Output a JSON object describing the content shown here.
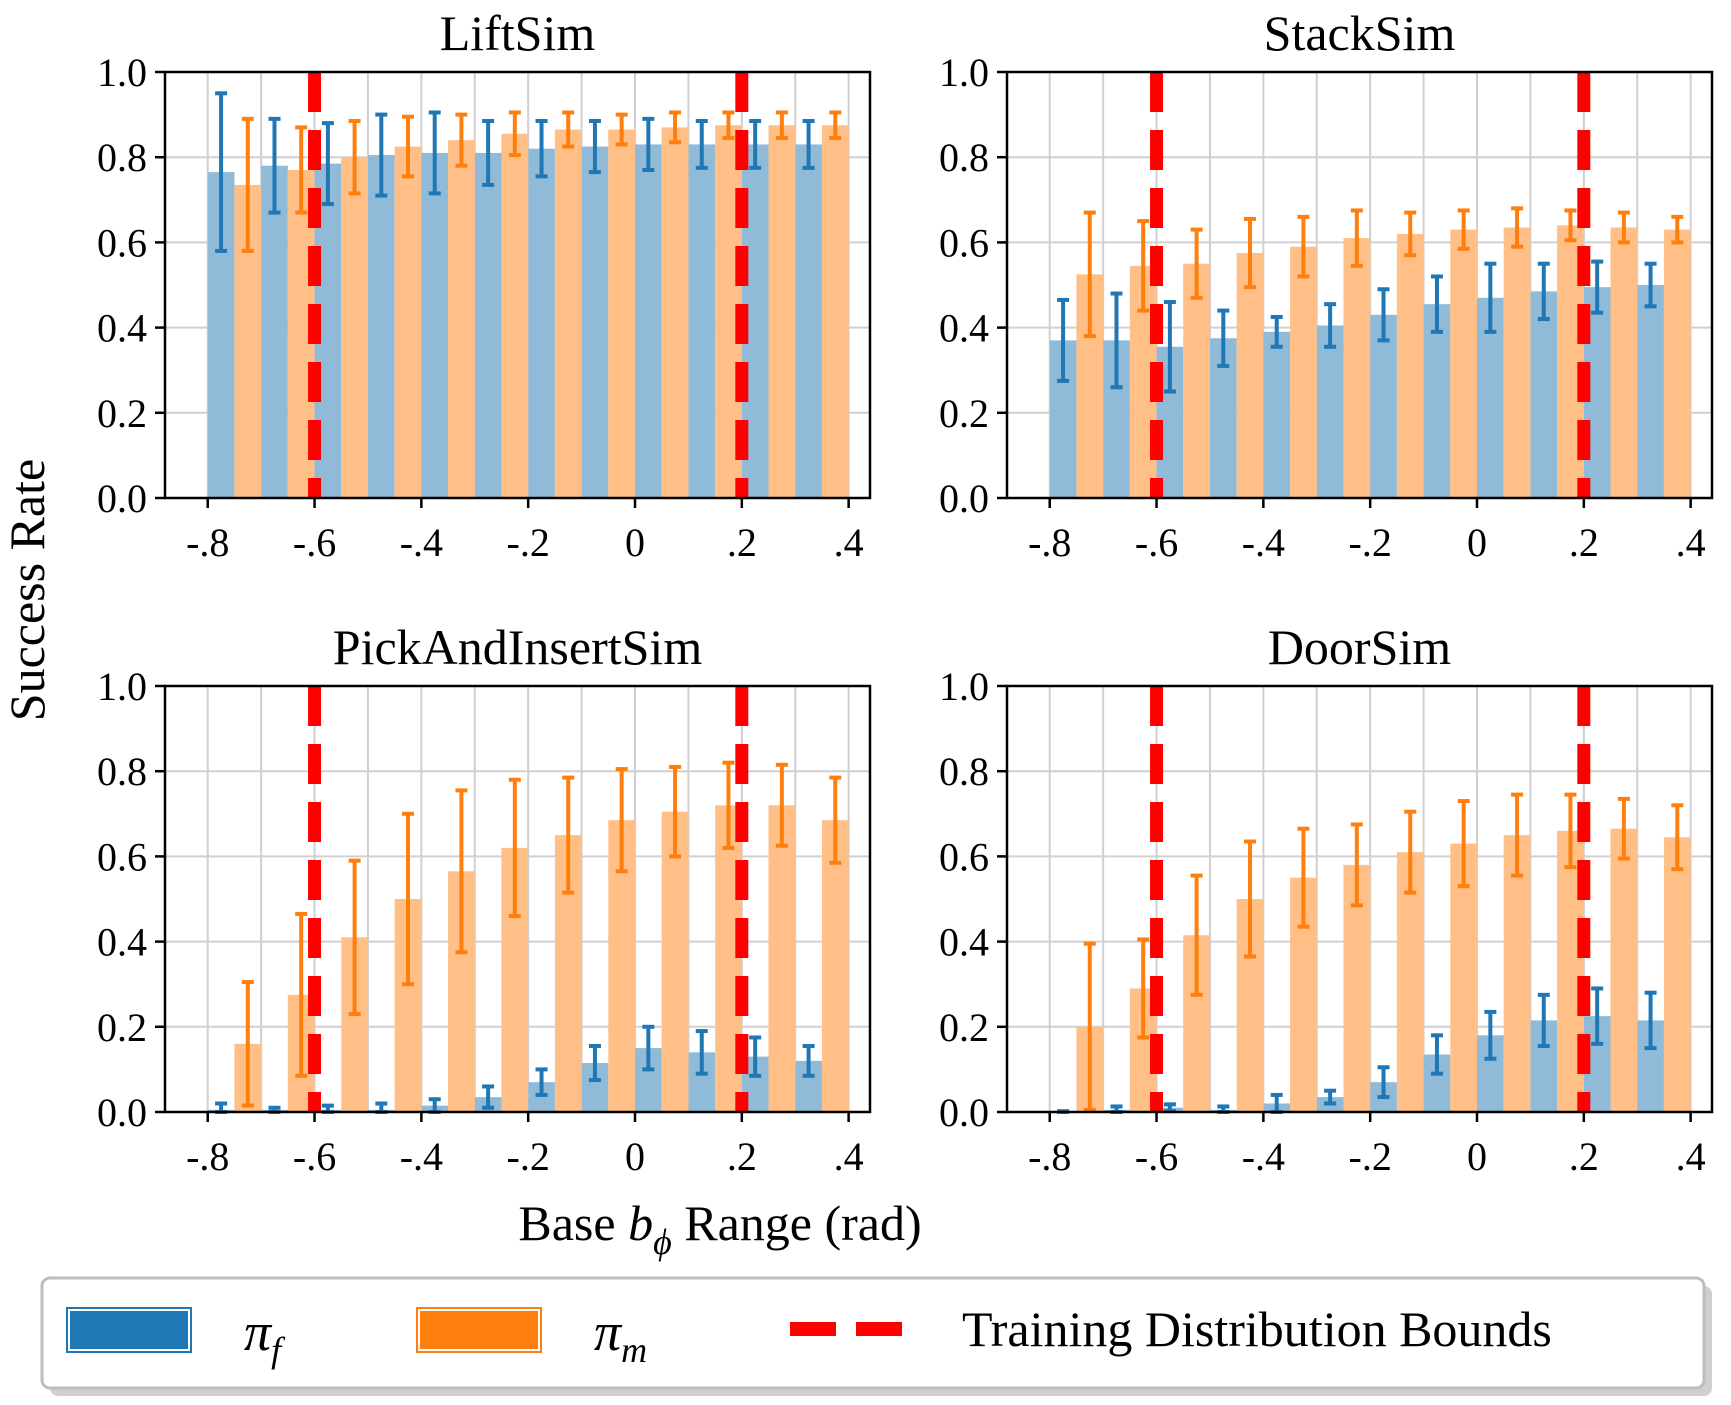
{
  "figure": {
    "ylabel": "Success Rate",
    "xlabel_pre": "Base ",
    "xlabel_var": "b",
    "xlabel_sub": "ϕ",
    "xlabel_post": " Range (rad)"
  },
  "legend": {
    "items": [
      {
        "sym": "π",
        "sub": "f",
        "color": "#1f77b4"
      },
      {
        "sym": "π",
        "sub": "m",
        "color": "#ff7f0e"
      },
      {
        "label": "Training Distribution Bounds",
        "color": "#ff0000"
      }
    ]
  },
  "colors": {
    "pi_f": "#1f77b4",
    "pi_m": "#ff7f0e",
    "bounds": "#ff0000",
    "grid": "#d0d0d0"
  },
  "chart_data": [
    {
      "type": "bar",
      "title": "LiftSim",
      "x": [
        -0.8,
        -0.7,
        -0.6,
        -0.5,
        -0.4,
        -0.3,
        -0.2,
        -0.1,
        0.0,
        0.1,
        0.2,
        0.3
      ],
      "xticks": [
        -0.8,
        -0.6,
        -0.4,
        -0.2,
        0.0,
        0.2,
        0.4
      ],
      "xticklabels": [
        "-.8",
        "-.6",
        "-.4",
        "-.2",
        "0",
        ".2",
        ".4"
      ],
      "yticks": [
        0.0,
        0.2,
        0.4,
        0.6,
        0.8,
        1.0
      ],
      "yticklabels": [
        "0.0",
        "0.2",
        "0.4",
        "0.6",
        "0.8",
        "1.0"
      ],
      "ylim": [
        0,
        1
      ],
      "bounds": [
        -0.6,
        0.2
      ],
      "series": [
        {
          "values": [
            0.765,
            0.78,
            0.785,
            0.805,
            0.81,
            0.81,
            0.82,
            0.825,
            0.83,
            0.83,
            0.83,
            0.83
          ],
          "err": [
            0.185,
            0.11,
            0.095,
            0.095,
            0.095,
            0.075,
            0.065,
            0.06,
            0.06,
            0.055,
            0.055,
            0.055
          ]
        },
        {
          "values": [
            0.735,
            0.77,
            0.8,
            0.825,
            0.84,
            0.855,
            0.865,
            0.865,
            0.87,
            0.875,
            0.875,
            0.875
          ],
          "err": [
            0.155,
            0.1,
            0.085,
            0.07,
            0.06,
            0.05,
            0.04,
            0.035,
            0.035,
            0.03,
            0.03,
            0.03
          ]
        }
      ]
    },
    {
      "type": "bar",
      "title": "StackSim",
      "x": [
        -0.8,
        -0.7,
        -0.6,
        -0.5,
        -0.4,
        -0.3,
        -0.2,
        -0.1,
        0.0,
        0.1,
        0.2,
        0.3
      ],
      "xticks": [
        -0.8,
        -0.6,
        -0.4,
        -0.2,
        0.0,
        0.2,
        0.4
      ],
      "xticklabels": [
        "-.8",
        "-.6",
        "-.4",
        "-.2",
        "0",
        ".2",
        ".4"
      ],
      "yticks": [
        0.0,
        0.2,
        0.4,
        0.6,
        0.8,
        1.0
      ],
      "yticklabels": [
        "0.0",
        "0.2",
        "0.4",
        "0.6",
        "0.8",
        "1.0"
      ],
      "ylim": [
        0,
        1
      ],
      "bounds": [
        -0.6,
        0.2
      ],
      "series": [
        {
          "values": [
            0.37,
            0.37,
            0.355,
            0.375,
            0.39,
            0.405,
            0.43,
            0.455,
            0.47,
            0.485,
            0.495,
            0.5
          ],
          "err": [
            0.095,
            0.11,
            0.105,
            0.065,
            0.035,
            0.05,
            0.06,
            0.065,
            0.08,
            0.065,
            0.06,
            0.05
          ]
        },
        {
          "values": [
            0.525,
            0.545,
            0.55,
            0.575,
            0.59,
            0.61,
            0.62,
            0.63,
            0.635,
            0.64,
            0.635,
            0.63
          ],
          "err": [
            0.145,
            0.105,
            0.08,
            0.08,
            0.07,
            0.065,
            0.05,
            0.045,
            0.045,
            0.035,
            0.035,
            0.03
          ]
        }
      ]
    },
    {
      "type": "bar",
      "title": "PickAndInsertSim",
      "x": [
        -0.8,
        -0.7,
        -0.6,
        -0.5,
        -0.4,
        -0.3,
        -0.2,
        -0.1,
        0.0,
        0.1,
        0.2,
        0.3
      ],
      "xticks": [
        -0.8,
        -0.6,
        -0.4,
        -0.2,
        0.0,
        0.2,
        0.4
      ],
      "xticklabels": [
        "-.8",
        "-.6",
        "-.4",
        "-.2",
        "0",
        ".2",
        ".4"
      ],
      "yticks": [
        0.0,
        0.2,
        0.4,
        0.6,
        0.8,
        1.0
      ],
      "yticklabels": [
        "0.0",
        "0.2",
        "0.4",
        "0.6",
        "0.8",
        "1.0"
      ],
      "ylim": [
        0,
        1
      ],
      "bounds": [
        -0.6,
        0.2
      ],
      "series": [
        {
          "values": [
            0.005,
            0.005,
            0.005,
            0.005,
            0.015,
            0.035,
            0.07,
            0.115,
            0.15,
            0.14,
            0.13,
            0.12
          ],
          "err": [
            0.015,
            0.005,
            0.01,
            0.015,
            0.015,
            0.025,
            0.03,
            0.04,
            0.05,
            0.05,
            0.045,
            0.035
          ]
        },
        {
          "values": [
            0.16,
            0.275,
            0.41,
            0.5,
            0.565,
            0.62,
            0.65,
            0.685,
            0.705,
            0.72,
            0.72,
            0.685
          ],
          "err": [
            0.145,
            0.19,
            0.18,
            0.2,
            0.19,
            0.16,
            0.135,
            0.12,
            0.105,
            0.1,
            0.095,
            0.1
          ]
        }
      ]
    },
    {
      "type": "bar",
      "title": "DoorSim",
      "x": [
        -0.8,
        -0.7,
        -0.6,
        -0.5,
        -0.4,
        -0.3,
        -0.2,
        -0.1,
        0.0,
        0.1,
        0.2,
        0.3
      ],
      "xticks": [
        -0.8,
        -0.6,
        -0.4,
        -0.2,
        0.0,
        0.2,
        0.4
      ],
      "xticklabels": [
        "-.8",
        "-.6",
        "-.4",
        "-.2",
        "0",
        ".2",
        ".4"
      ],
      "yticks": [
        0.0,
        0.2,
        0.4,
        0.6,
        0.8,
        1.0
      ],
      "yticklabels": [
        "0.0",
        "0.2",
        "0.4",
        "0.6",
        "0.8",
        "1.0"
      ],
      "ylim": [
        0,
        1
      ],
      "bounds": [
        -0.6,
        0.2
      ],
      "series": [
        {
          "values": [
            0.0,
            0.005,
            0.01,
            0.005,
            0.02,
            0.035,
            0.07,
            0.135,
            0.18,
            0.215,
            0.225,
            0.215
          ],
          "err": [
            0.002,
            0.008,
            0.008,
            0.008,
            0.02,
            0.015,
            0.035,
            0.045,
            0.055,
            0.06,
            0.065,
            0.065
          ]
        },
        {
          "values": [
            0.2,
            0.29,
            0.415,
            0.5,
            0.55,
            0.58,
            0.61,
            0.63,
            0.65,
            0.66,
            0.665,
            0.645
          ],
          "err": [
            0.195,
            0.115,
            0.14,
            0.135,
            0.115,
            0.095,
            0.095,
            0.1,
            0.095,
            0.085,
            0.07,
            0.075
          ]
        }
      ]
    }
  ]
}
